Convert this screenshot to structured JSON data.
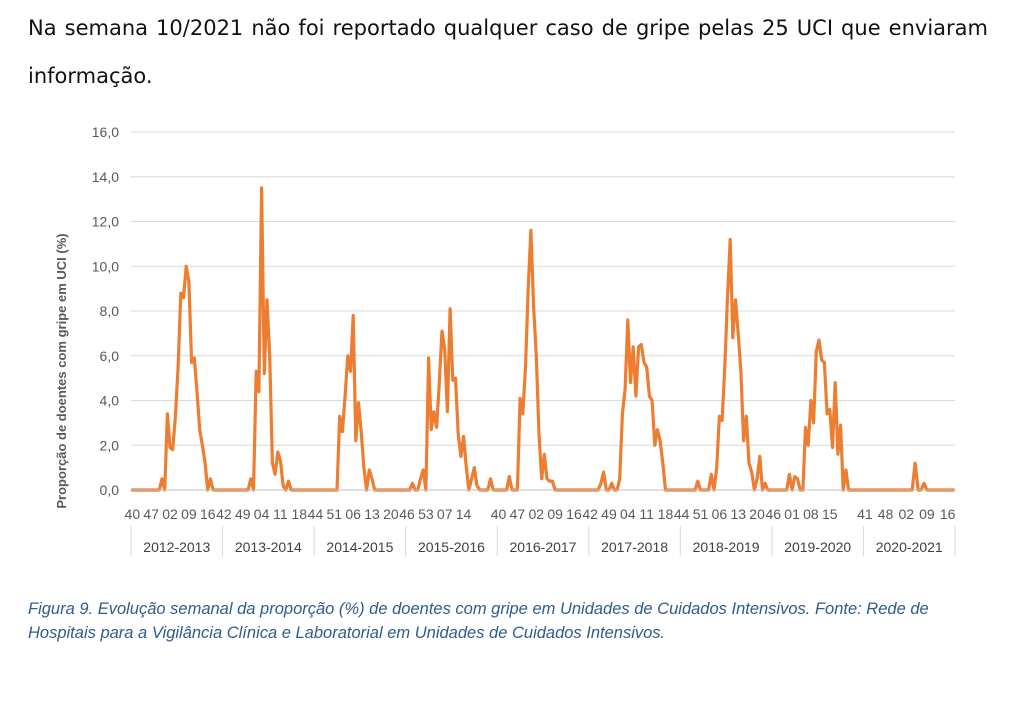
{
  "intro_text": "Na semana 10/2021 não foi reportado qualquer caso de gripe pelas 25 UCI que enviaram informação.",
  "caption": "Figura 9. Evolução semanal da proporção (%) de doentes com gripe em Unidades de Cuidados Intensivos. Fonte: Rede de Hospitais para a Vigilância Clínica e Laboratorial em Unidades de Cuidados Intensivos.",
  "colors": {
    "line": "#ed7d31",
    "grid": "#d9d9d9",
    "axis_text": "#595959",
    "caption": "#2f5c8a"
  },
  "chart_data": {
    "type": "line",
    "title": "",
    "ylabel": "Proporção de doentes com gripe em UCI (%)",
    "xlabel": "",
    "ylim": [
      0,
      16
    ],
    "yticks": [
      "0,0",
      "2,0",
      "4,0",
      "6,0",
      "8,0",
      "10,0",
      "12,0",
      "14,0",
      "16,0"
    ],
    "grid": true,
    "legend": "none",
    "seasons": [
      {
        "label": "2012-2013",
        "week_labels": [
          "40",
          "47",
          "02",
          "09",
          "16"
        ],
        "values": [
          0,
          0,
          0,
          0,
          0,
          0,
          0,
          0,
          0,
          0,
          0,
          0.5,
          0,
          3.4,
          1.9,
          1.8,
          3.3,
          5.5,
          8.8,
          8.6,
          10,
          9.3,
          5.7,
          5.9,
          4.4,
          2.7,
          2,
          1.2,
          0,
          0.5,
          0,
          0,
          0,
          0
        ]
      },
      {
        "label": "2013-2014",
        "week_labels": [
          "42",
          "49",
          "04",
          "11",
          "18"
        ],
        "values": [
          0,
          0,
          0,
          0,
          0,
          0,
          0,
          0,
          0,
          0,
          0.5,
          0,
          5.3,
          4.4,
          13.5,
          5.2,
          8.5,
          6,
          1.2,
          0.7,
          1.7,
          1.3,
          0.2,
          0,
          0.4,
          0,
          0,
          0,
          0,
          0,
          0,
          0,
          0,
          0
        ]
      },
      {
        "label": "2014-2015",
        "week_labels": [
          "44",
          "51",
          "06",
          "13",
          "20"
        ],
        "values": [
          0,
          0,
          0,
          0,
          0,
          0,
          0,
          0,
          0,
          3.3,
          2.6,
          4.2,
          6,
          5.3,
          7.8,
          2.2,
          3.9,
          2.6,
          1,
          0,
          0.9,
          0.5,
          0,
          0,
          0,
          0,
          0,
          0,
          0,
          0,
          0,
          0,
          0,
          0
        ]
      },
      {
        "label": "2015-2016",
        "week_labels": [
          "46",
          "53",
          "07",
          "14"
        ],
        "values": [
          0,
          0,
          0.3,
          0,
          0,
          0.5,
          0.9,
          0,
          5.9,
          2.7,
          3.5,
          2.8,
          4.8,
          7.1,
          6.3,
          3.5,
          8.1,
          4.9,
          5,
          2.5,
          1.5,
          2.4,
          1,
          0,
          0.5,
          1,
          0.2,
          0,
          0,
          0,
          0,
          0.5,
          0,
          0
        ]
      },
      {
        "label": "2016-2017",
        "week_labels": [
          "40",
          "47",
          "02",
          "09",
          "16"
        ],
        "values": [
          0,
          0,
          0,
          0,
          0.6,
          0,
          0,
          0,
          4.1,
          3.4,
          5.5,
          9,
          11.6,
          8.2,
          6,
          2.5,
          0.5,
          1.6,
          0.5,
          0.4,
          0.4,
          0,
          0,
          0,
          0,
          0,
          0,
          0,
          0,
          0,
          0,
          0,
          0,
          0
        ]
      },
      {
        "label": "2017-2018",
        "week_labels": [
          "42",
          "49",
          "04",
          "11",
          "18"
        ],
        "values": [
          0,
          0,
          0,
          0,
          0.3,
          0.8,
          0,
          0,
          0.3,
          0,
          0,
          0.5,
          3.4,
          4.5,
          7.6,
          4.8,
          6.4,
          4.2,
          6.4,
          6.5,
          5.7,
          5.5,
          4.2,
          4,
          2,
          2.7,
          2.2,
          1.2,
          0,
          0,
          0,
          0,
          0,
          0
        ]
      },
      {
        "label": "2018-2019",
        "week_labels": [
          "44",
          "51",
          "06",
          "13",
          "20"
        ],
        "values": [
          0,
          0,
          0,
          0,
          0,
          0,
          0.4,
          0,
          0,
          0,
          0,
          0.7,
          0,
          1,
          3.3,
          3.1,
          5.5,
          8.6,
          11.2,
          6.8,
          8.5,
          7,
          5.3,
          2.2,
          3.3,
          1.2,
          0.8,
          0,
          0.5,
          1.5,
          0,
          0.3,
          0,
          0
        ]
      },
      {
        "label": "2019-2020",
        "week_labels": [
          "46",
          "01",
          "08",
          "15"
        ],
        "values": [
          0,
          0,
          0,
          0,
          0,
          0,
          0.7,
          0,
          0.6,
          0.5,
          0,
          0,
          2.8,
          2,
          4,
          3,
          6.2,
          6.7,
          5.8,
          5.7,
          3.4,
          3.6,
          1.9,
          4.8,
          1.6,
          2.9,
          0,
          0.9,
          0,
          0,
          0,
          0,
          0,
          0
        ]
      },
      {
        "label": "2020-2021",
        "week_labels": [
          "41",
          "48",
          "02",
          "09",
          "16"
        ],
        "values": [
          0,
          0,
          0,
          0,
          0,
          0,
          0,
          0,
          0,
          0,
          0,
          0,
          0,
          0,
          0,
          0,
          0,
          1.2,
          0,
          0,
          0.3,
          0,
          0,
          0,
          0,
          0,
          0,
          0,
          0,
          0,
          0
        ]
      }
    ]
  }
}
